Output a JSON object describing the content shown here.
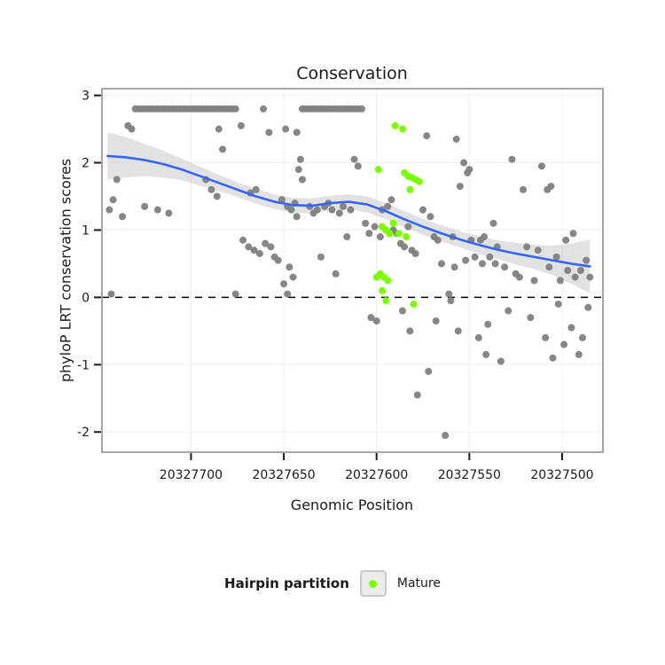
{
  "title": "Conservation",
  "axes": {
    "x_label": "Genomic Position",
    "y_label": "phyloP LRT conservation scores"
  },
  "legend": {
    "title": "Hairpin partition",
    "items": [
      {
        "label": "Mature",
        "color": "#7CFC00"
      }
    ]
  },
  "colors": {
    "point_gray": "#808080",
    "point_mature": "#7CFC00",
    "smooth_line": "#3366FF",
    "ribbon": "#CBCBCB",
    "panel_border": "#A6A6A6",
    "gridline": "#EFEFEF",
    "hline": "#000000",
    "tick": "#1a1a1a"
  },
  "chart_data": {
    "type": "scatter",
    "title": "Conservation",
    "xlabel": "Genomic Position",
    "ylabel": "phyloP LRT conservation scores",
    "x_axis_reversed": true,
    "xlim": [
      20327748,
      20327478
    ],
    "ylim": [
      -2.3,
      3.1
    ],
    "x_ticks": [
      {
        "value": 20327700,
        "label": "20327700"
      },
      {
        "value": 20327650,
        "label": "20327650"
      },
      {
        "value": 20327600,
        "label": "20327600"
      },
      {
        "value": 20327550,
        "label": "20327550"
      },
      {
        "value": 20327500,
        "label": "20327500"
      }
    ],
    "y_ticks": [
      3,
      2,
      1,
      0,
      -1,
      -2
    ],
    "hline_y": 0,
    "legend_position": "bottom",
    "grid": true,
    "series": [
      {
        "id": "gray",
        "name": "phyloP conservation scores",
        "color": "#808080",
        "opacity": 0.95,
        "points": [
          [
            20327730,
            2.8
          ],
          [
            20327728,
            2.8
          ],
          [
            20327726,
            2.8
          ],
          [
            20327724,
            2.8
          ],
          [
            20327722,
            2.8
          ],
          [
            20327720,
            2.8
          ],
          [
            20327718,
            2.8
          ],
          [
            20327716,
            2.8
          ],
          [
            20327714,
            2.8
          ],
          [
            20327712,
            2.8
          ],
          [
            20327710,
            2.8
          ],
          [
            20327708,
            2.8
          ],
          [
            20327706,
            2.8
          ],
          [
            20327704,
            2.8
          ],
          [
            20327702,
            2.8
          ],
          [
            20327700,
            2.8
          ],
          [
            20327698,
            2.8
          ],
          [
            20327696,
            2.8
          ],
          [
            20327694,
            2.8
          ],
          [
            20327692,
            2.8
          ],
          [
            20327690,
            2.8
          ],
          [
            20327688,
            2.8
          ],
          [
            20327686,
            2.8
          ],
          [
            20327684,
            2.8
          ],
          [
            20327682,
            2.8
          ],
          [
            20327680,
            2.8
          ],
          [
            20327678,
            2.8
          ],
          [
            20327676,
            2.8
          ],
          [
            20327661,
            2.8
          ],
          [
            20327640,
            2.8
          ],
          [
            20327638,
            2.8
          ],
          [
            20327636,
            2.8
          ],
          [
            20327634,
            2.8
          ],
          [
            20327632,
            2.8
          ],
          [
            20327630,
            2.8
          ],
          [
            20327628,
            2.8
          ],
          [
            20327626,
            2.8
          ],
          [
            20327624,
            2.8
          ],
          [
            20327622,
            2.8
          ],
          [
            20327620,
            2.8
          ],
          [
            20327618,
            2.8
          ],
          [
            20327616,
            2.8
          ],
          [
            20327614,
            2.8
          ],
          [
            20327612,
            2.8
          ],
          [
            20327610,
            2.8
          ],
          [
            20327608,
            2.8
          ],
          [
            20327734,
            2.55
          ],
          [
            20327732,
            2.5
          ],
          [
            20327685,
            2.5
          ],
          [
            20327673,
            2.55
          ],
          [
            20327658,
            2.45
          ],
          [
            20327649,
            2.5
          ],
          [
            20327643,
            2.45
          ],
          [
            20327573,
            2.4
          ],
          [
            20327557,
            2.35
          ],
          [
            20327744,
            1.3
          ],
          [
            20327742,
            1.45
          ],
          [
            20327740,
            1.75
          ],
          [
            20327737,
            1.2
          ],
          [
            20327743,
            0.05
          ],
          [
            20327725,
            1.35
          ],
          [
            20327718,
            1.3
          ],
          [
            20327712,
            1.25
          ],
          [
            20327692,
            1.75
          ],
          [
            20327689,
            1.6
          ],
          [
            20327686,
            1.5
          ],
          [
            20327683,
            2.2
          ],
          [
            20327676,
            0.05
          ],
          [
            20327672,
            0.85
          ],
          [
            20327669,
            0.75
          ],
          [
            20327666,
            0.7
          ],
          [
            20327663,
            0.65
          ],
          [
            20327660,
            0.8
          ],
          [
            20327657,
            0.75
          ],
          [
            20327668,
            1.55
          ],
          [
            20327665,
            1.6
          ],
          [
            20327655,
            0.6
          ],
          [
            20327653,
            0.55
          ],
          [
            20327651,
            1.45
          ],
          [
            20327650,
            0.2
          ],
          [
            20327648,
            1.35
          ],
          [
            20327648,
            0.05
          ],
          [
            20327647,
            0.45
          ],
          [
            20327646,
            1.3
          ],
          [
            20327645,
            0.3
          ],
          [
            20327644,
            1.4
          ],
          [
            20327643,
            1.2
          ],
          [
            20327642,
            1.9
          ],
          [
            20327641,
            2.05
          ],
          [
            20327640,
            1.75
          ],
          [
            20327636,
            1.35
          ],
          [
            20327634,
            1.25
          ],
          [
            20327632,
            1.3
          ],
          [
            20327630,
            0.6
          ],
          [
            20327628,
            1.35
          ],
          [
            20327626,
            1.4
          ],
          [
            20327624,
            1.3
          ],
          [
            20327622,
            0.35
          ],
          [
            20327620,
            1.25
          ],
          [
            20327618,
            1.35
          ],
          [
            20327616,
            0.9
          ],
          [
            20327614,
            1.3
          ],
          [
            20327612,
            2.05
          ],
          [
            20327610,
            1.95
          ],
          [
            20327606,
            1.1
          ],
          [
            20327604,
            0.95
          ],
          [
            20327603,
            -0.3
          ],
          [
            20327601,
            1.05
          ],
          [
            20327600,
            -0.35
          ],
          [
            20327598,
            0.9
          ],
          [
            20327597,
            1.3
          ],
          [
            20327595,
            1.0
          ],
          [
            20327594,
            1.35
          ],
          [
            20327593,
            0.95
          ],
          [
            20327592,
            1.45
          ],
          [
            20327591,
            1.0
          ],
          [
            20327589,
            0.95
          ],
          [
            20327587,
            0.8
          ],
          [
            20327586,
            -0.2
          ],
          [
            20327585,
            0.75
          ],
          [
            20327583,
            1.05
          ],
          [
            20327582,
            -0.5
          ],
          [
            20327581,
            0.7
          ],
          [
            20327579,
            0.65
          ],
          [
            20327578,
            -1.45
          ],
          [
            20327575,
            1.3
          ],
          [
            20327572,
            -1.1
          ],
          [
            20327571,
            1.2
          ],
          [
            20327569,
            0.9
          ],
          [
            20327568,
            -0.35
          ],
          [
            20327567,
            0.85
          ],
          [
            20327565,
            0.5
          ],
          [
            20327563,
            -2.05
          ],
          [
            20327561,
            0.05
          ],
          [
            20327560,
            -0.05
          ],
          [
            20327559,
            0.9
          ],
          [
            20327558,
            0.45
          ],
          [
            20327556,
            -0.5
          ],
          [
            20327555,
            1.65
          ],
          [
            20327553,
            2.0
          ],
          [
            20327552,
            0.55
          ],
          [
            20327551,
            1.85
          ],
          [
            20327550,
            1.9
          ],
          [
            20327549,
            0.85
          ],
          [
            20327547,
            0.6
          ],
          [
            20327545,
            -0.6
          ],
          [
            20327544,
            0.85
          ],
          [
            20327543,
            0.5
          ],
          [
            20327542,
            0.9
          ],
          [
            20327541,
            -0.85
          ],
          [
            20327540,
            -0.4
          ],
          [
            20327539,
            0.6
          ],
          [
            20327537,
            1.1
          ],
          [
            20327536,
            0.5
          ],
          [
            20327535,
            0.75
          ],
          [
            20327533,
            -0.95
          ],
          [
            20327531,
            0.45
          ],
          [
            20327529,
            -0.2
          ],
          [
            20327527,
            2.05
          ],
          [
            20327525,
            0.35
          ],
          [
            20327523,
            0.3
          ],
          [
            20327521,
            1.6
          ],
          [
            20327519,
            0.75
          ],
          [
            20327517,
            -0.3
          ],
          [
            20327515,
            0.25
          ],
          [
            20327513,
            0.7
          ],
          [
            20327511,
            1.95
          ],
          [
            20327509,
            -0.6
          ],
          [
            20327508,
            1.6
          ],
          [
            20327507,
            0.45
          ],
          [
            20327506,
            1.65
          ],
          [
            20327505,
            -0.9
          ],
          [
            20327503,
            0.6
          ],
          [
            20327502,
            -0.1
          ],
          [
            20327501,
            0.25
          ],
          [
            20327499,
            -0.7
          ],
          [
            20327498,
            0.85
          ],
          [
            20327497,
            0.4
          ],
          [
            20327495,
            -0.45
          ],
          [
            20327494,
            0.95
          ],
          [
            20327493,
            0.3
          ],
          [
            20327491,
            -0.85
          ],
          [
            20327490,
            0.4
          ],
          [
            20327489,
            -0.6
          ],
          [
            20327487,
            0.55
          ],
          [
            20327486,
            -0.15
          ],
          [
            20327485,
            0.3
          ]
        ]
      },
      {
        "id": "mature",
        "name": "Mature",
        "color": "#7CFC00",
        "opacity": 1,
        "points": [
          [
            20327590,
            2.55
          ],
          [
            20327586,
            2.5
          ],
          [
            20327599,
            1.9
          ],
          [
            20327585,
            1.85
          ],
          [
            20327583,
            1.8
          ],
          [
            20327581,
            1.78
          ],
          [
            20327579,
            1.75
          ],
          [
            20327577,
            1.72
          ],
          [
            20327582,
            1.6
          ],
          [
            20327597,
            1.05
          ],
          [
            20327595,
            1.0
          ],
          [
            20327593,
            0.95
          ],
          [
            20327591,
            1.1
          ],
          [
            20327588,
            0.95
          ],
          [
            20327584,
            0.9
          ],
          [
            20327600,
            0.3
          ],
          [
            20327598,
            0.35
          ],
          [
            20327596,
            0.3
          ],
          [
            20327594,
            0.25
          ],
          [
            20327597,
            0.1
          ],
          [
            20327595,
            -0.05
          ],
          [
            20327580,
            -0.1
          ]
        ]
      }
    ],
    "smooth": {
      "name": "loess smooth with confidence band",
      "color": "#3366FF",
      "x": [
        20327745,
        20327735,
        20327725,
        20327715,
        20327705,
        20327695,
        20327685,
        20327675,
        20327665,
        20327655,
        20327645,
        20327635,
        20327625,
        20327615,
        20327605,
        20327595,
        20327585,
        20327575,
        20327565,
        20327555,
        20327545,
        20327535,
        20327525,
        20327515,
        20327505,
        20327495,
        20327485
      ],
      "y": [
        2.1,
        2.08,
        2.04,
        1.98,
        1.9,
        1.8,
        1.7,
        1.6,
        1.5,
        1.42,
        1.37,
        1.36,
        1.4,
        1.42,
        1.38,
        1.28,
        1.16,
        1.05,
        0.95,
        0.86,
        0.78,
        0.71,
        0.65,
        0.6,
        0.55,
        0.5,
        0.46
      ],
      "upper": [
        2.45,
        2.38,
        2.28,
        2.18,
        2.06,
        1.94,
        1.82,
        1.71,
        1.61,
        1.53,
        1.48,
        1.47,
        1.51,
        1.53,
        1.5,
        1.4,
        1.28,
        1.17,
        1.07,
        0.98,
        0.91,
        0.85,
        0.81,
        0.78,
        0.77,
        0.8,
        0.86
      ],
      "lower": [
        1.75,
        1.78,
        1.8,
        1.78,
        1.74,
        1.66,
        1.58,
        1.49,
        1.39,
        1.31,
        1.26,
        1.25,
        1.29,
        1.31,
        1.26,
        1.16,
        1.04,
        0.93,
        0.83,
        0.74,
        0.65,
        0.57,
        0.49,
        0.42,
        0.33,
        0.2,
        0.06
      ]
    }
  }
}
